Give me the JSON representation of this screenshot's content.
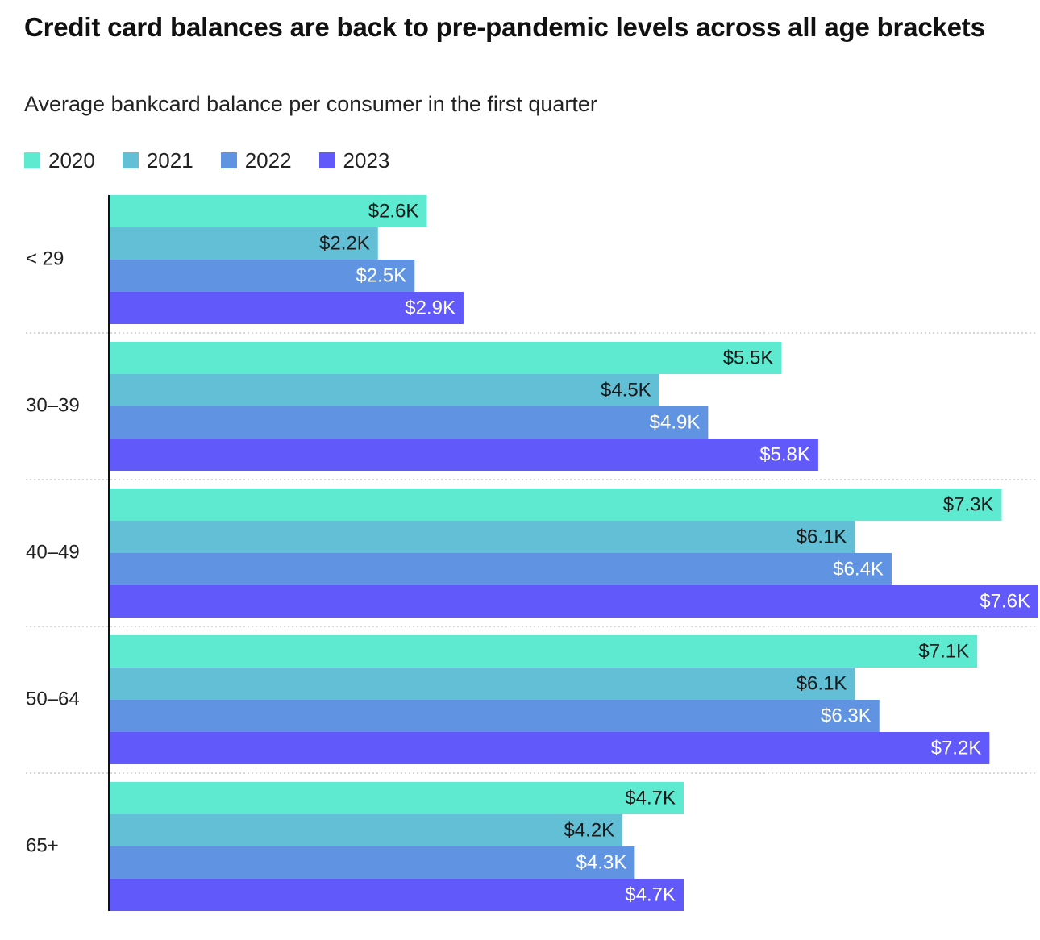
{
  "header": {
    "title": "Credit card balances are back to pre-pandemic levels across all age brackets",
    "subtitle": "Average bankcard balance per consumer in the first quarter"
  },
  "chart_data": {
    "type": "bar",
    "orientation": "horizontal",
    "title": "Credit card balances are back to pre-pandemic levels across all age brackets",
    "subtitle": "Average bankcard balance per consumer in the first quarter",
    "xlabel": "",
    "ylabel": "",
    "xlim": [
      0,
      7.6
    ],
    "grid": false,
    "legend_position": "top-left",
    "categories": [
      "< 29",
      "30–39",
      "40–49",
      "50–64",
      "65+"
    ],
    "series": [
      {
        "name": "2020",
        "color": "#5eead0",
        "label_color": "#1a1a1a",
        "values": [
          2.6,
          5.5,
          7.3,
          7.1,
          4.7
        ],
        "labels": [
          "$2.6K",
          "$5.5K",
          "$7.3K",
          "$7.1K",
          "$4.7K"
        ]
      },
      {
        "name": "2021",
        "color": "#62bfd6",
        "label_color": "#1a1a1a",
        "values": [
          2.2,
          4.5,
          6.1,
          6.1,
          4.2
        ],
        "labels": [
          "$2.2K",
          "$4.5K",
          "$6.1K",
          "$6.1K",
          "$4.2K"
        ]
      },
      {
        "name": "2022",
        "color": "#6094e3",
        "label_color": "#ffffff",
        "values": [
          2.5,
          4.9,
          6.4,
          6.3,
          4.3
        ],
        "labels": [
          "$2.5K",
          "$4.9K",
          "$6.4K",
          "$6.3K",
          "$4.3K"
        ]
      },
      {
        "name": "2023",
        "color": "#6159fa",
        "label_color": "#ffffff",
        "values": [
          2.9,
          5.8,
          7.6,
          7.2,
          4.7
        ],
        "labels": [
          "$2.9K",
          "$5.8K",
          "$7.6K",
          "$7.2K",
          "$4.7K"
        ]
      }
    ]
  }
}
